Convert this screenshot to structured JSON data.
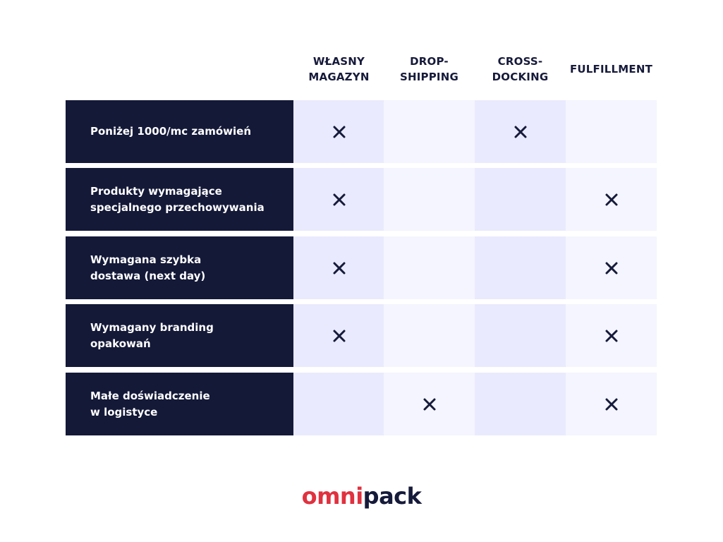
{
  "columns": [
    {
      "label": "WŁASNY\nMAGAZYN"
    },
    {
      "label": "DROP-\nSHIPPING"
    },
    {
      "label": "CROSS-\nDOCKING"
    },
    {
      "label": "FULFILLMENT"
    }
  ],
  "rows": [
    {
      "label": "Poniżej 1000/mc zamówień",
      "marks": [
        true,
        false,
        true,
        false
      ]
    },
    {
      "label": "Produkty wymagające\nspecjalnego przechowywania",
      "marks": [
        true,
        false,
        false,
        true
      ]
    },
    {
      "label": "Wymagana szybka\ndostawa (next day)",
      "marks": [
        true,
        false,
        false,
        true
      ]
    },
    {
      "label": "Wymagany branding\nopakowań",
      "marks": [
        true,
        false,
        false,
        true
      ]
    },
    {
      "label": "Małe doświadczenie\nw logistyce",
      "marks": [
        false,
        true,
        false,
        true
      ]
    }
  ],
  "mark_icon": "x-mark-icon",
  "logo": {
    "part1": "omni",
    "part2": "pack"
  },
  "colors": {
    "accent": "#e0313f",
    "dark": "#141938",
    "cell_a": "#e9eafd",
    "cell_b": "#f4f5fe"
  }
}
